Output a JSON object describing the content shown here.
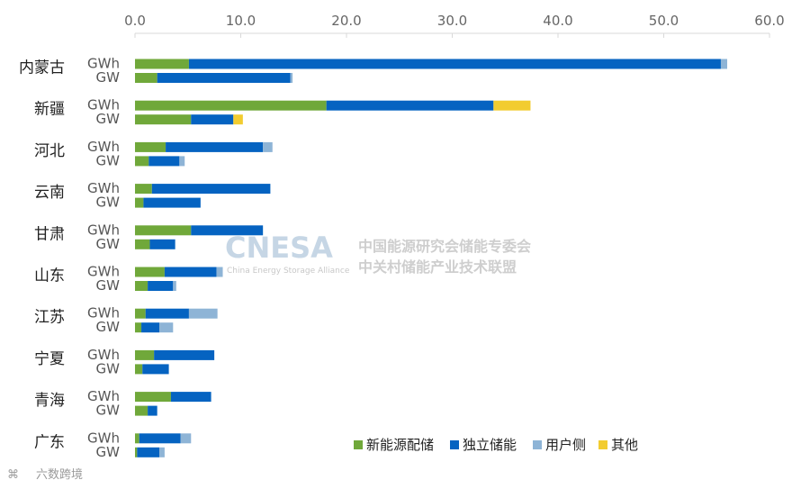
{
  "chart_data": {
    "type": "bar",
    "orientation": "horizontal",
    "stacked": true,
    "xlim": [
      0,
      60
    ],
    "x_ticks": [
      "0.0",
      "10.0",
      "20.0",
      "30.0",
      "40.0",
      "50.0",
      "60.0"
    ],
    "x_tick_values": [
      0,
      10,
      20,
      30,
      40,
      50,
      60
    ],
    "unit_labels": [
      "GWh",
      "GW"
    ],
    "regions": [
      "内蒙古",
      "新疆",
      "河北",
      "云南",
      "甘肃",
      "山东",
      "江苏",
      "宁夏",
      "青海",
      "广东"
    ],
    "series_names": [
      "新能源配储",
      "独立储能",
      "用户侧",
      "其他"
    ],
    "colors": [
      "#70a83a",
      "#0563c1",
      "#8eb4d6",
      "#f2cc30"
    ],
    "rows": [
      {
        "region": "内蒙古",
        "unit": "GWh",
        "values": [
          5.1,
          50.3,
          0.6,
          0
        ]
      },
      {
        "region": "内蒙古",
        "unit": "GW",
        "values": [
          2.1,
          12.6,
          0.2,
          0
        ]
      },
      {
        "region": "新疆",
        "unit": "GWh",
        "values": [
          18.1,
          15.8,
          0,
          3.5
        ]
      },
      {
        "region": "新疆",
        "unit": "GW",
        "values": [
          5.3,
          4.0,
          0,
          0.9
        ]
      },
      {
        "region": "河北",
        "unit": "GWh",
        "values": [
          2.9,
          9.2,
          0.9,
          0
        ]
      },
      {
        "region": "河北",
        "unit": "GW",
        "values": [
          1.3,
          2.9,
          0.5,
          0
        ]
      },
      {
        "region": "云南",
        "unit": "GWh",
        "values": [
          1.6,
          11.2,
          0,
          0
        ]
      },
      {
        "region": "云南",
        "unit": "GW",
        "values": [
          0.8,
          5.4,
          0,
          0
        ]
      },
      {
        "region": "甘肃",
        "unit": "GWh",
        "values": [
          5.3,
          6.8,
          0,
          0
        ]
      },
      {
        "region": "甘肃",
        "unit": "GW",
        "values": [
          1.4,
          2.4,
          0,
          0
        ]
      },
      {
        "region": "山东",
        "unit": "GWh",
        "values": [
          2.8,
          4.9,
          0.6,
          0
        ]
      },
      {
        "region": "山东",
        "unit": "GW",
        "values": [
          1.2,
          2.4,
          0.3,
          0
        ]
      },
      {
        "region": "江苏",
        "unit": "GWh",
        "values": [
          1.0,
          4.1,
          2.7,
          0
        ]
      },
      {
        "region": "江苏",
        "unit": "GW",
        "values": [
          0.6,
          1.7,
          1.3,
          0
        ]
      },
      {
        "region": "宁夏",
        "unit": "GWh",
        "values": [
          1.8,
          5.7,
          0,
          0
        ]
      },
      {
        "region": "宁夏",
        "unit": "GW",
        "values": [
          0.7,
          2.5,
          0,
          0
        ]
      },
      {
        "region": "青海",
        "unit": "GWh",
        "values": [
          3.4,
          3.8,
          0,
          0
        ]
      },
      {
        "region": "青海",
        "unit": "GW",
        "values": [
          1.2,
          0.9,
          0,
          0
        ]
      },
      {
        "region": "广东",
        "unit": "GWh",
        "values": [
          0.4,
          3.9,
          1.0,
          0
        ]
      },
      {
        "region": "广东",
        "unit": "GW",
        "values": [
          0.2,
          2.1,
          0.5,
          0
        ]
      }
    ],
    "grid": false,
    "legend_position": "bottom-right"
  },
  "watermark": {
    "logo": "CNESA",
    "org_line1": "中国能源研究会储能专委会",
    "org_line2": "中关村储能产业技术联盟",
    "org_en": "China Energy Storage Alliance"
  },
  "source_mark": "六数跨境"
}
